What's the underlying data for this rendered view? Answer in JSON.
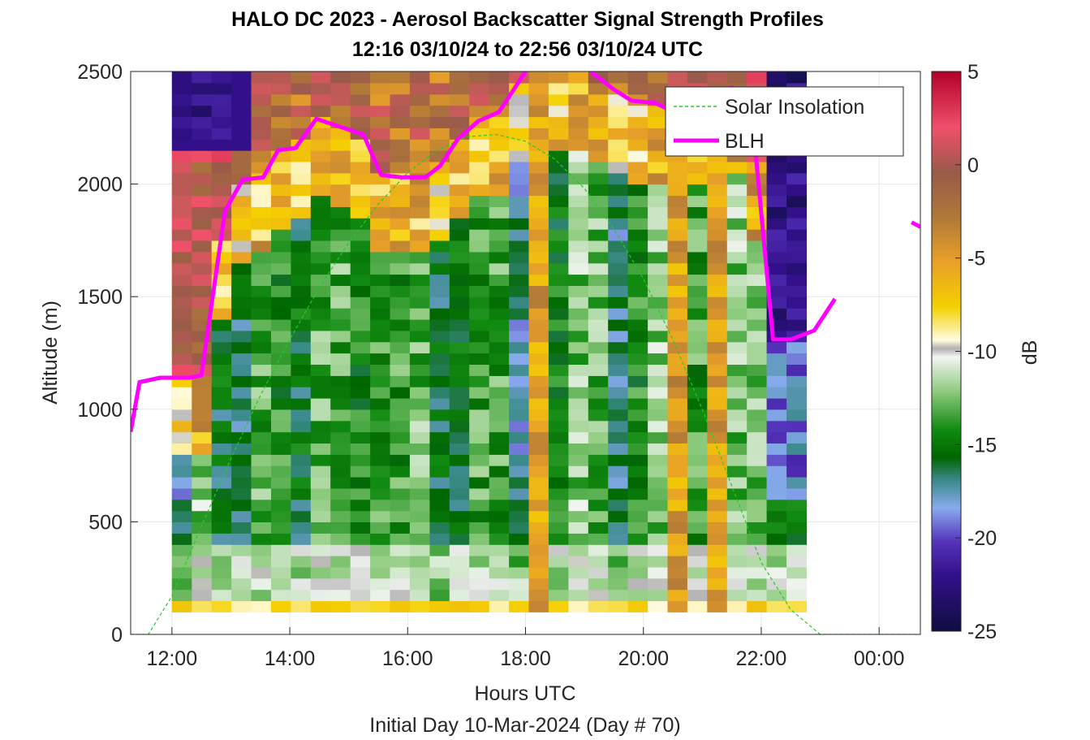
{
  "chart_data": {
    "type": "heatmap",
    "title": "HALO DC 2023 - Aerosol Backscatter Signal Strength Profiles",
    "subtitle": "12:16 03/10/24 to 22:56 03/10/24  UTC",
    "xlabel": "Hours UTC",
    "xlabel2": "Initial Day 10-Mar-2024 (Day # 70)",
    "ylabel": "Altitude (m)",
    "xlim": [
      11.3,
      24.7
    ],
    "x_ticks": [
      {
        "value": 12,
        "label": "12:00"
      },
      {
        "value": 14,
        "label": "14:00"
      },
      {
        "value": 16,
        "label": "16:00"
      },
      {
        "value": 18,
        "label": "18:00"
      },
      {
        "value": 20,
        "label": "20:00"
      },
      {
        "value": 22,
        "label": "22:00"
      },
      {
        "value": 24,
        "label": "00:00"
      }
    ],
    "ylim": [
      0,
      2500
    ],
    "y_ticks": [
      0,
      500,
      1000,
      1500,
      2000,
      2500
    ],
    "grid": true,
    "colorbar": {
      "label": "dB",
      "range": [
        -25,
        5
      ],
      "ticks": [
        5,
        0,
        -5,
        -10,
        -15,
        -20,
        -25
      ]
    },
    "heatmap": {
      "x_start": 12.0,
      "x_step": 0.3364,
      "x_cols": 32,
      "y_start": 100,
      "y_step": 50,
      "y_rows": 48,
      "time_range_hours": [
        12.27,
        22.93
      ]
    },
    "series": [
      {
        "name": "Solar Insolation",
        "style": "dashed",
        "color": "#22cc22",
        "x": [
          11.3,
          11.6,
          12.0,
          12.5,
          13.0,
          13.5,
          14.0,
          14.5,
          15.0,
          15.5,
          16.0,
          16.5,
          17.0,
          17.5,
          18.0,
          18.5,
          19.0,
          19.5,
          20.0,
          20.5,
          21.0,
          21.5,
          22.0,
          22.5,
          23.0,
          23.1,
          24.7
        ],
        "y": [
          0,
          0,
          170,
          480,
          780,
          1060,
          1310,
          1540,
          1740,
          1910,
          2050,
          2150,
          2210,
          2220,
          2190,
          2110,
          1980,
          1800,
          1580,
          1310,
          1000,
          660,
          320,
          110,
          0,
          0,
          0
        ]
      },
      {
        "name": "BLH",
        "style": "solid",
        "color": "#ff00ff",
        "segments": [
          {
            "x": [
              11.3,
              11.45,
              11.8,
              12.3,
              12.5,
              12.9,
              13.2,
              13.55,
              13.8,
              14.1,
              14.45,
              14.9,
              15.25,
              15.55,
              15.9,
              16.3,
              16.55,
              16.85,
              17.2,
              17.55,
              17.8,
              18.0
            ],
            "y": [
              900,
              1120,
              1140,
              1140,
              1150,
              1880,
              2020,
              2030,
              2150,
              2160,
              2290,
              2250,
              2220,
              2040,
              2030,
              2030,
              2080,
              2200,
              2280,
              2320,
              2420,
              2500
            ]
          },
          {
            "x": [
              19.1,
              19.5,
              19.8,
              20.2,
              20.6,
              21.0,
              21.5,
              21.7,
              21.9,
              22.2,
              22.5,
              22.9,
              23.25
            ],
            "y": [
              2500,
              2420,
              2370,
              2360,
              2310,
              2380,
              2430,
              2350,
              2150,
              1310,
              1310,
              1350,
              1490
            ]
          },
          {
            "x": [
              24.55,
              24.7
            ],
            "y": [
              1830,
              1810
            ]
          }
        ]
      }
    ]
  },
  "legend": {
    "placement": "top-right",
    "entries": [
      "Solar Insolation",
      "BLH"
    ]
  }
}
